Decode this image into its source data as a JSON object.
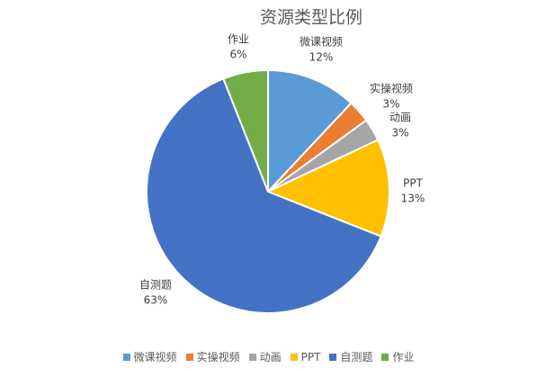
{
  "chart_data": {
    "type": "pie",
    "title": "资源类型比例",
    "categories": [
      "微课视频",
      "实操视频",
      "动画",
      "PPT",
      "自测题",
      "作业"
    ],
    "values": [
      12,
      3,
      3,
      13,
      63,
      6
    ],
    "value_labels": [
      "12%",
      "3%",
      "3%",
      "13%",
      "63%",
      "6%"
    ],
    "colors": [
      "#5b9bd5",
      "#ed7d31",
      "#a5a5a5",
      "#ffc000",
      "#4472c4",
      "#70ad47"
    ],
    "legend": "bottom"
  }
}
